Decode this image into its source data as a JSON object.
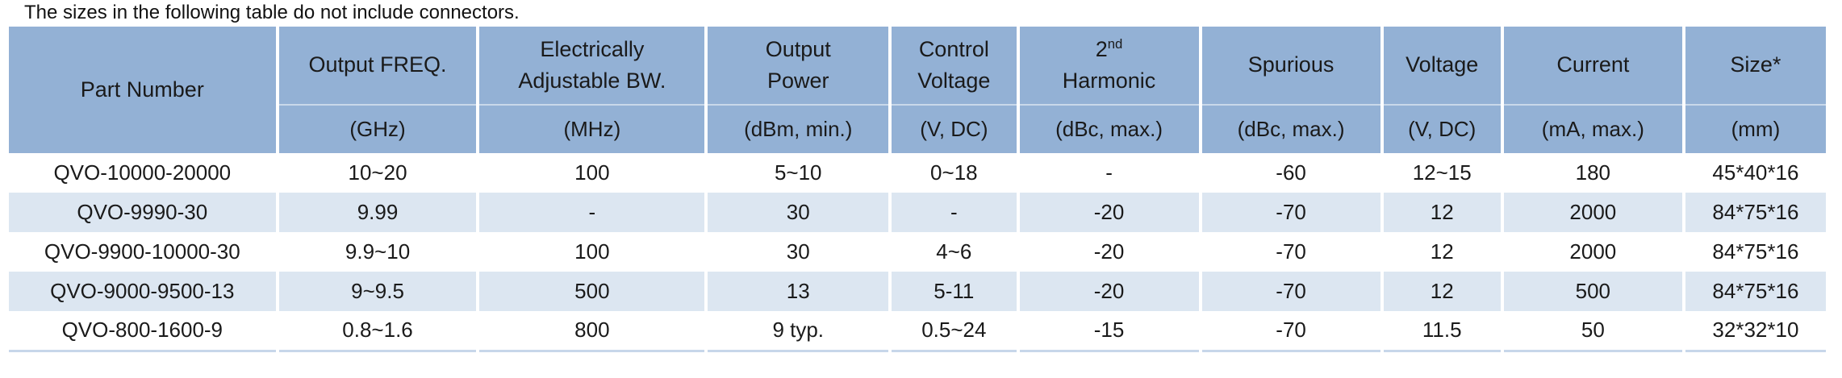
{
  "caption": "The sizes in the following table do not include connectors.",
  "table": {
    "colors": {
      "header_bg": "#93B1D5",
      "row_alt_bg": "#DCE6F1",
      "row_bg": "#FFFFFF",
      "separator": "#FFFFFF",
      "bottom_line": "#C7D7EA",
      "text": "#1A1A1A"
    },
    "columns": [
      {
        "name": [
          "Part Number"
        ],
        "unit": "",
        "width": 14.77
      },
      {
        "name": [
          "Output FREQ."
        ],
        "unit": "(GHz)",
        "width": 11.05
      },
      {
        "name": [
          "Electrically",
          "Adjustable BW."
        ],
        "unit": "(MHz)",
        "width": 12.56
      },
      {
        "name": [
          "Output",
          "Power"
        ],
        "unit": "(dBm, min.)",
        "width": 10.12
      },
      {
        "name": [
          "Control",
          "Voltage"
        ],
        "unit": "(V, DC)",
        "width": 7.03
      },
      {
        "name": [
          "2^nd^",
          "Harmonic"
        ],
        "unit": "(dBc, max.)",
        "width": 10.04
      },
      {
        "name": [
          "Spurious"
        ],
        "unit": "(dBc, max.)",
        "width": 9.99
      },
      {
        "name": [
          "Voltage"
        ],
        "unit": "(V, DC)",
        "width": 6.63
      },
      {
        "name": [
          "Current"
        ],
        "unit": "(mA, max.)",
        "width": 9.99
      },
      {
        "name": [
          "Size*"
        ],
        "unit": "(mm)",
        "width": 7.82
      }
    ],
    "rows": [
      [
        "QVO-10000-20000",
        "10~20",
        "100",
        "5~10",
        "0~18",
        "-",
        "-60",
        "12~15",
        "180",
        "45*40*16"
      ],
      [
        "QVO-9990-30",
        "9.99",
        "-",
        "30",
        "-",
        "-20",
        "-70",
        "12",
        "2000",
        "84*75*16"
      ],
      [
        "QVO-9900-10000-30",
        "9.9~10",
        "100",
        "30",
        "4~6",
        "-20",
        "-70",
        "12",
        "2000",
        "84*75*16"
      ],
      [
        "QVO-9000-9500-13",
        "9~9.5",
        "500",
        "13",
        "5-11",
        "-20",
        "-70",
        "12",
        "500",
        "84*75*16"
      ],
      [
        "QVO-800-1600-9",
        "0.8~1.6",
        "800",
        "9 typ.",
        "0.5~24",
        "-15",
        "-70",
        "11.5",
        "50",
        "32*32*10"
      ]
    ]
  }
}
